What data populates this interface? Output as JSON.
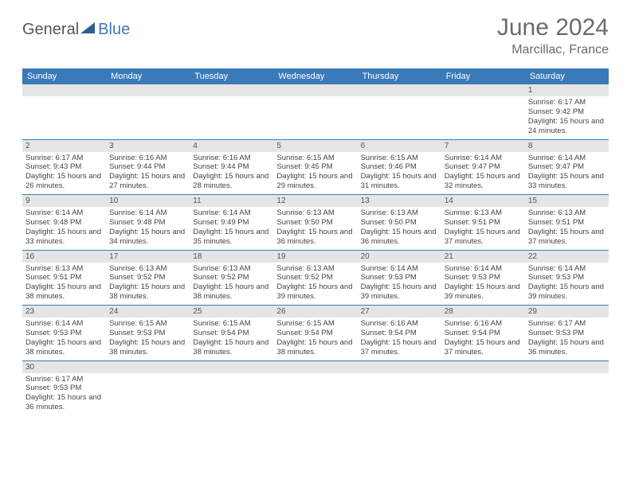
{
  "logo": {
    "part1": "General",
    "part2": "Blue"
  },
  "title": "June 2024",
  "location": "Marcillac, France",
  "colors": {
    "header_bg": "#3a7ab8",
    "daynum_bg": "#e5e5e5",
    "border": "#3a7ab8",
    "text": "#444444",
    "title_color": "#6b6b6b"
  },
  "weekdays": [
    "Sunday",
    "Monday",
    "Tuesday",
    "Wednesday",
    "Thursday",
    "Friday",
    "Saturday"
  ],
  "weeks": [
    [
      null,
      null,
      null,
      null,
      null,
      null,
      {
        "n": "1",
        "sr": "6:17 AM",
        "ss": "9:42 PM",
        "dl": "15 hours and 24 minutes."
      }
    ],
    [
      {
        "n": "2",
        "sr": "6:17 AM",
        "ss": "9:43 PM",
        "dl": "15 hours and 26 minutes."
      },
      {
        "n": "3",
        "sr": "6:16 AM",
        "ss": "9:44 PM",
        "dl": "15 hours and 27 minutes."
      },
      {
        "n": "4",
        "sr": "6:16 AM",
        "ss": "9:44 PM",
        "dl": "15 hours and 28 minutes."
      },
      {
        "n": "5",
        "sr": "6:15 AM",
        "ss": "9:45 PM",
        "dl": "15 hours and 29 minutes."
      },
      {
        "n": "6",
        "sr": "6:15 AM",
        "ss": "9:46 PM",
        "dl": "15 hours and 31 minutes."
      },
      {
        "n": "7",
        "sr": "6:14 AM",
        "ss": "9:47 PM",
        "dl": "15 hours and 32 minutes."
      },
      {
        "n": "8",
        "sr": "6:14 AM",
        "ss": "9:47 PM",
        "dl": "15 hours and 33 minutes."
      }
    ],
    [
      {
        "n": "9",
        "sr": "6:14 AM",
        "ss": "9:48 PM",
        "dl": "15 hours and 33 minutes."
      },
      {
        "n": "10",
        "sr": "6:14 AM",
        "ss": "9:48 PM",
        "dl": "15 hours and 34 minutes."
      },
      {
        "n": "11",
        "sr": "6:14 AM",
        "ss": "9:49 PM",
        "dl": "15 hours and 35 minutes."
      },
      {
        "n": "12",
        "sr": "6:13 AM",
        "ss": "9:50 PM",
        "dl": "15 hours and 36 minutes."
      },
      {
        "n": "13",
        "sr": "6:13 AM",
        "ss": "9:50 PM",
        "dl": "15 hours and 36 minutes."
      },
      {
        "n": "14",
        "sr": "6:13 AM",
        "ss": "9:51 PM",
        "dl": "15 hours and 37 minutes."
      },
      {
        "n": "15",
        "sr": "6:13 AM",
        "ss": "9:51 PM",
        "dl": "15 hours and 37 minutes."
      }
    ],
    [
      {
        "n": "16",
        "sr": "6:13 AM",
        "ss": "9:51 PM",
        "dl": "15 hours and 38 minutes."
      },
      {
        "n": "17",
        "sr": "6:13 AM",
        "ss": "9:52 PM",
        "dl": "15 hours and 38 minutes."
      },
      {
        "n": "18",
        "sr": "6:13 AM",
        "ss": "9:52 PM",
        "dl": "15 hours and 38 minutes."
      },
      {
        "n": "19",
        "sr": "6:13 AM",
        "ss": "9:52 PM",
        "dl": "15 hours and 39 minutes."
      },
      {
        "n": "20",
        "sr": "6:14 AM",
        "ss": "9:53 PM",
        "dl": "15 hours and 39 minutes."
      },
      {
        "n": "21",
        "sr": "6:14 AM",
        "ss": "9:53 PM",
        "dl": "15 hours and 39 minutes."
      },
      {
        "n": "22",
        "sr": "6:14 AM",
        "ss": "9:53 PM",
        "dl": "15 hours and 39 minutes."
      }
    ],
    [
      {
        "n": "23",
        "sr": "6:14 AM",
        "ss": "9:53 PM",
        "dl": "15 hours and 38 minutes."
      },
      {
        "n": "24",
        "sr": "6:15 AM",
        "ss": "9:53 PM",
        "dl": "15 hours and 38 minutes."
      },
      {
        "n": "25",
        "sr": "6:15 AM",
        "ss": "9:54 PM",
        "dl": "15 hours and 38 minutes."
      },
      {
        "n": "26",
        "sr": "6:15 AM",
        "ss": "9:54 PM",
        "dl": "15 hours and 38 minutes."
      },
      {
        "n": "27",
        "sr": "6:16 AM",
        "ss": "9:54 PM",
        "dl": "15 hours and 37 minutes."
      },
      {
        "n": "28",
        "sr": "6:16 AM",
        "ss": "9:54 PM",
        "dl": "15 hours and 37 minutes."
      },
      {
        "n": "29",
        "sr": "6:17 AM",
        "ss": "9:53 PM",
        "dl": "15 hours and 36 minutes."
      }
    ],
    [
      {
        "n": "30",
        "sr": "6:17 AM",
        "ss": "9:53 PM",
        "dl": "15 hours and 36 minutes."
      },
      null,
      null,
      null,
      null,
      null,
      null
    ]
  ],
  "labels": {
    "sunrise": "Sunrise:",
    "sunset": "Sunset:",
    "daylight": "Daylight:"
  }
}
